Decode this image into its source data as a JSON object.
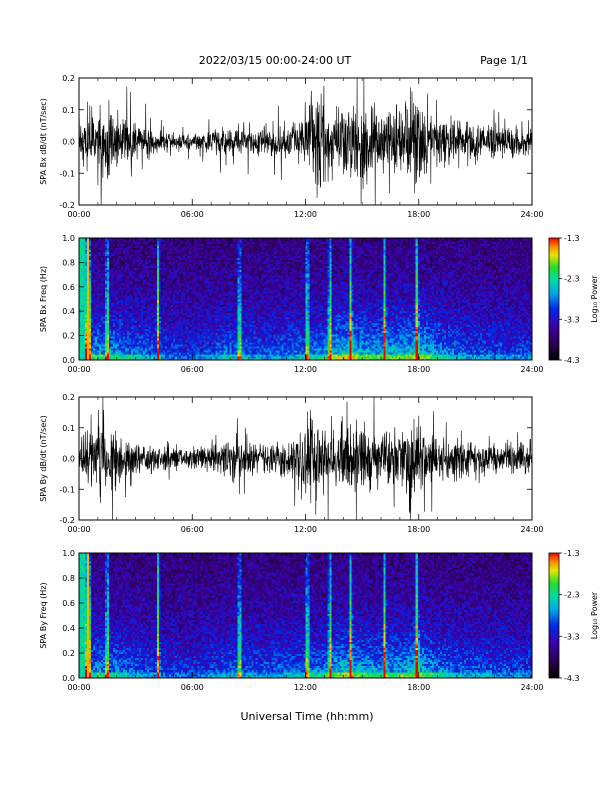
{
  "header": {
    "title": "2022/03/15  00:00-24:00 UT",
    "page": "Page 1/1"
  },
  "xlabel": "Universal Time (hh:mm)",
  "chart_data": [
    {
      "type": "line",
      "title": "",
      "ylabel": "SPA Bx dB/dt (nT/sec)",
      "x_ticks": [
        "00:00",
        "06:00",
        "12:00",
        "18:00",
        "24:00"
      ],
      "xlim": [
        0,
        24
      ],
      "ylim": [
        -0.2,
        0.2
      ],
      "y_ticks": [
        "-0.2",
        "-0.1",
        "0.0",
        "0.1",
        "0.2"
      ],
      "series_color": "#000000",
      "envelope": {
        "hours": [
          0,
          0.5,
          1,
          1.5,
          2,
          2.5,
          3,
          3.5,
          4,
          4.5,
          5,
          5.5,
          6,
          7,
          8,
          9,
          10,
          11,
          11.5,
          12,
          12.5,
          13,
          13.5,
          14,
          14.5,
          15,
          15.5,
          16,
          17,
          17.5,
          18,
          18.5,
          19,
          20,
          21,
          22,
          23,
          24
        ],
        "amplitude": [
          0.06,
          0.12,
          0.09,
          0.14,
          0.08,
          0.09,
          0.07,
          0.06,
          0.05,
          0.04,
          0.03,
          0.03,
          0.025,
          0.04,
          0.05,
          0.05,
          0.05,
          0.06,
          0.07,
          0.09,
          0.18,
          0.16,
          0.09,
          0.12,
          0.13,
          0.14,
          0.12,
          0.12,
          0.11,
          0.13,
          0.14,
          0.1,
          0.09,
          0.07,
          0.07,
          0.06,
          0.06,
          0.05
        ]
      }
    },
    {
      "type": "heatmap",
      "title": "",
      "ylabel": "SPA Bx Freq (Hz)",
      "x_ticks": [
        "00:00",
        "06:00",
        "12:00",
        "18:00",
        "24:00"
      ],
      "xlim": [
        0,
        24
      ],
      "ylim": [
        0,
        1.0
      ],
      "y_ticks": [
        "0.0",
        "0.2",
        "0.4",
        "0.6",
        "0.8",
        "1.0"
      ],
      "colorbar": {
        "label": "Log₁₀ Power",
        "ticks": [
          "-1.3",
          "-2.3",
          "-3.3",
          "-4.3"
        ],
        "range": [
          -4.3,
          -1.3
        ]
      },
      "bright_lines_hours": [
        0.35,
        0.55,
        1.5,
        4.2,
        8.5,
        12.1,
        13.3,
        14.4,
        16.2,
        17.9
      ],
      "activity_hours": [
        0,
        1,
        2,
        4,
        6,
        8,
        10,
        12,
        13,
        14,
        15,
        16,
        17,
        18,
        19,
        20,
        22,
        24
      ],
      "activity_level": [
        0.55,
        0.6,
        0.55,
        0.35,
        0.25,
        0.45,
        0.35,
        0.45,
        0.55,
        0.75,
        0.65,
        0.6,
        0.65,
        0.75,
        0.55,
        0.4,
        0.35,
        0.3
      ]
    },
    {
      "type": "line",
      "title": "",
      "ylabel": "SPA By dB/dt (nT/sec)",
      "x_ticks": [
        "00:00",
        "06:00",
        "12:00",
        "18:00",
        "24:00"
      ],
      "xlim": [
        0,
        24
      ],
      "ylim": [
        -0.2,
        0.2
      ],
      "y_ticks": [
        "-0.2",
        "-0.1",
        "0.0",
        "0.1",
        "0.2"
      ],
      "series_color": "#000000",
      "envelope": {
        "hours": [
          0,
          0.5,
          1,
          1.5,
          2,
          2.5,
          3,
          3.5,
          4,
          4.5,
          5,
          5.5,
          6,
          7,
          8,
          9,
          10,
          11,
          11.5,
          12,
          12.5,
          13,
          13.5,
          14,
          14.5,
          15,
          15.5,
          16,
          17,
          17.5,
          18,
          18.5,
          19,
          20,
          21,
          22,
          23,
          24
        ],
        "amplitude": [
          0.05,
          0.12,
          0.1,
          0.14,
          0.1,
          0.08,
          0.06,
          0.06,
          0.05,
          0.04,
          0.04,
          0.04,
          0.035,
          0.05,
          0.06,
          0.06,
          0.06,
          0.07,
          0.09,
          0.17,
          0.16,
          0.12,
          0.1,
          0.14,
          0.12,
          0.12,
          0.11,
          0.1,
          0.1,
          0.12,
          0.13,
          0.09,
          0.08,
          0.07,
          0.06,
          0.06,
          0.06,
          0.05
        ]
      }
    },
    {
      "type": "heatmap",
      "title": "",
      "ylabel": "SPA By Freq (Hz)",
      "x_ticks": [
        "00:00",
        "06:00",
        "12:00",
        "18:00",
        "24:00"
      ],
      "xlim": [
        0,
        24
      ],
      "ylim": [
        0,
        1.0
      ],
      "y_ticks": [
        "0.0",
        "0.2",
        "0.4",
        "0.6",
        "0.8",
        "1.0"
      ],
      "colorbar": {
        "label": "Log₁₀ Power",
        "ticks": [
          "-1.3",
          "-2.3",
          "-3.3",
          "-4.3"
        ],
        "range": [
          -4.3,
          -1.3
        ]
      },
      "bright_lines_hours": [
        0.35,
        0.55,
        1.5,
        4.2,
        8.5,
        12.1,
        13.3,
        14.4,
        16.2,
        17.9
      ],
      "activity_hours": [
        0,
        1,
        2,
        4,
        6,
        8,
        10,
        12,
        13,
        14,
        15,
        16,
        17,
        18,
        19,
        20,
        22,
        24
      ],
      "activity_level": [
        0.5,
        0.55,
        0.5,
        0.3,
        0.25,
        0.4,
        0.35,
        0.45,
        0.5,
        0.7,
        0.6,
        0.55,
        0.6,
        0.7,
        0.5,
        0.4,
        0.35,
        0.3
      ]
    }
  ]
}
